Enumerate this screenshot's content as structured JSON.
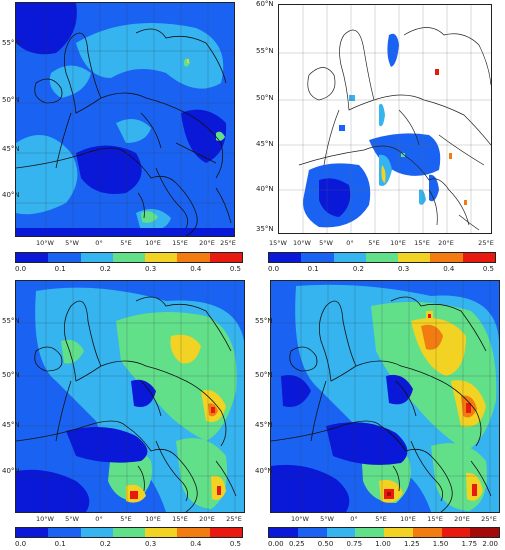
{
  "colors": {
    "c0": "#0a18d8",
    "c1": "#1a63f2",
    "c2": "#35b4ef",
    "c3": "#62e089",
    "c4": "#f2d222",
    "c5": "#f27c12",
    "c6": "#e81a10",
    "c7": "#a30a08",
    "land_border": "#111111",
    "grid": "#555555"
  },
  "panels": [
    {
      "id": "top-left",
      "lat_labels": [
        "55°N",
        "50°N",
        "45°N",
        "40°N"
      ],
      "lon_labels": [
        "10°W",
        "5°W",
        "0°",
        "5°E",
        "10°E",
        "15°E",
        "20°E",
        "25°E"
      ],
      "colorbar": {
        "colors": [
          "#0a18d8",
          "#1a63f2",
          "#35b4ef",
          "#62e089",
          "#f2d222",
          "#f27c12",
          "#e81a10"
        ],
        "ticks": [
          "0.0",
          "0.1",
          "0.2",
          "0.3",
          "0.4",
          "0.5"
        ]
      }
    },
    {
      "id": "top-right",
      "lat_labels": [
        "60°N",
        "55°N",
        "50°N",
        "45°N",
        "40°N",
        "35°N"
      ],
      "lon_labels": [
        "15°W",
        "10°W",
        "5°W",
        "0°",
        "5°E",
        "10°E",
        "15°E",
        "20°E",
        "25°E"
      ],
      "colorbar": {
        "colors": [
          "#0a18d8",
          "#1a63f2",
          "#35b4ef",
          "#62e089",
          "#f2d222",
          "#f27c12",
          "#e81a10"
        ],
        "ticks": [
          "0.0",
          "0.1",
          "0.2",
          "0.3",
          "0.4",
          "0.5"
        ]
      }
    },
    {
      "id": "bottom-left",
      "lat_labels": [
        "55°N",
        "50°N",
        "45°N",
        "40°N"
      ],
      "lon_labels": [
        "10°W",
        "5°W",
        "0°",
        "5°E",
        "10°E",
        "15°E",
        "20°E",
        "25°E"
      ],
      "colorbar": {
        "colors": [
          "#0a18d8",
          "#1a63f2",
          "#35b4ef",
          "#62e089",
          "#f2d222",
          "#f27c12",
          "#e81a10"
        ],
        "ticks": [
          "0.0",
          "0.1",
          "0.2",
          "0.3",
          "0.4",
          "0.5"
        ]
      }
    },
    {
      "id": "bottom-right",
      "lat_labels": [
        "55°N",
        "50°N",
        "45°N",
        "40°N"
      ],
      "lon_labels": [
        "10°W",
        "5°W",
        "0°",
        "5°E",
        "10°E",
        "15°E",
        "20°E",
        "25°E"
      ],
      "colorbar": {
        "colors": [
          "#0a18d8",
          "#1a63f2",
          "#35b4ef",
          "#62e089",
          "#f2d222",
          "#f27c12",
          "#e81a10",
          "#a30a08"
        ],
        "ticks": [
          "0.00",
          "0.25",
          "0.50",
          "0.75",
          "1.00",
          "1.25",
          "1.50",
          "1.75",
          "2.00"
        ]
      }
    }
  ]
}
